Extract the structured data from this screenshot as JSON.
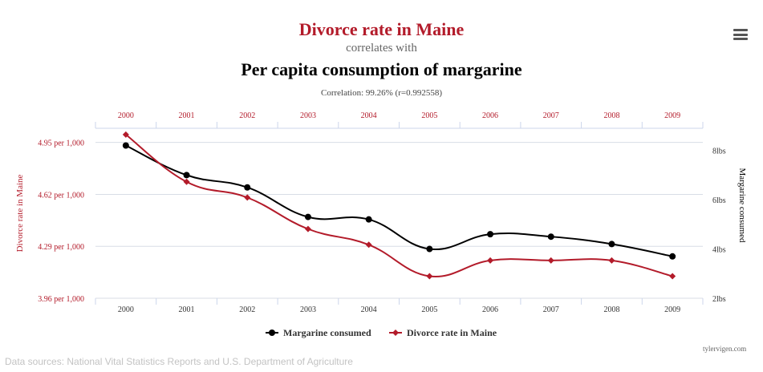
{
  "header": {
    "title": "Divorce rate in Maine",
    "subtitle": "correlates with",
    "title2": "Per capita consumption of margarine",
    "correlation": "Correlation: 99.26% (r=0.992558)"
  },
  "footer": {
    "sources": "Data sources: National Vital Statistics Reports and U.S. Department of Agriculture",
    "credit": "tylervigen.com"
  },
  "colors": {
    "divorce": "#b31b2a",
    "margarine": "#000000",
    "grid": "#d8dde6"
  },
  "icons": {
    "menu": "hamburger-menu-icon"
  },
  "chart_data": {
    "type": "line",
    "categories": [
      "2000",
      "2001",
      "2002",
      "2003",
      "2004",
      "2005",
      "2006",
      "2007",
      "2008",
      "2009"
    ],
    "series": [
      {
        "name": "Margarine consumed",
        "axis": "right",
        "color": "#000000",
        "marker": "circle",
        "values": [
          8.2,
          7.0,
          6.5,
          5.3,
          5.2,
          4.0,
          4.6,
          4.5,
          4.2,
          3.7
        ]
      },
      {
        "name": "Divorce rate in Maine",
        "axis": "left",
        "color": "#b31b2a",
        "marker": "diamond",
        "values": [
          5.0,
          4.7,
          4.6,
          4.4,
          4.3,
          4.1,
          4.2,
          4.2,
          4.2,
          4.1
        ]
      }
    ],
    "left_axis": {
      "label": "Divorce rate in Maine",
      "ticks": [
        "4.95 per 1,000",
        "4.62 per 1,000",
        "4.29 per 1,000",
        "3.96 per 1,000"
      ],
      "tick_values": [
        4.95,
        4.62,
        4.29,
        3.96
      ],
      "range": [
        3.96,
        5.04
      ]
    },
    "right_axis": {
      "label": "Margarine consumed",
      "ticks": [
        "8lbs",
        "6lbs",
        "4lbs",
        "2lbs"
      ],
      "tick_values": [
        8,
        6,
        4,
        2
      ],
      "range": [
        2,
        8.9
      ]
    },
    "legend_position": "bottom-center",
    "grid": true
  }
}
